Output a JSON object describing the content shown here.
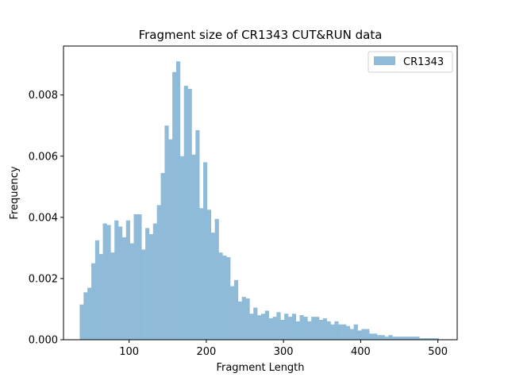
{
  "chart_data": {
    "type": "bar",
    "title": "Fragment size of CR1343 CUT&RUN data",
    "xlabel": "Fragment Length",
    "ylabel": "Frequency",
    "xlim": [
      15,
      525
    ],
    "ylim": [
      0,
      0.0096
    ],
    "xticks": [
      100,
      200,
      300,
      400,
      500
    ],
    "yticks": [
      0.0,
      0.002,
      0.004,
      0.006,
      0.008
    ],
    "ytick_labels": [
      "0.000",
      "0.002",
      "0.004",
      "0.006",
      "0.008"
    ],
    "xtick_labels": [
      "100",
      "200",
      "300",
      "400",
      "500"
    ],
    "bar_color": "#8fbbd9",
    "legend_position": "top-right",
    "bin_start": 36,
    "bin_width": 5,
    "series": [
      {
        "name": "CR1343",
        "values": [
          0.00115,
          0.00155,
          0.0017,
          0.0025,
          0.00325,
          0.0028,
          0.0038,
          0.00375,
          0.00285,
          0.0039,
          0.0037,
          0.00335,
          0.0039,
          0.00315,
          0.0041,
          0.0041,
          0.00295,
          0.00365,
          0.00345,
          0.0038,
          0.0044,
          0.00545,
          0.007,
          0.00655,
          0.00875,
          0.0091,
          0.006,
          0.0083,
          0.0082,
          0.00605,
          0.00685,
          0.0043,
          0.0058,
          0.00425,
          0.0035,
          0.00395,
          0.00285,
          0.00275,
          0.0027,
          0.00175,
          0.00195,
          0.00125,
          0.0014,
          0.00135,
          0.00085,
          0.00105,
          0.0008,
          0.00085,
          0.00095,
          0.0007,
          0.00075,
          0.0009,
          0.00065,
          0.00085,
          0.00075,
          0.00085,
          0.0006,
          0.0008,
          0.00075,
          0.0006,
          0.00075,
          0.00075,
          0.00065,
          0.0007,
          0.0006,
          0.0005,
          0.0006,
          0.0005,
          0.0005,
          0.00045,
          0.00035,
          0.0005,
          0.0003,
          0.00035,
          0.00035,
          0.0002,
          0.0002,
          0.00015,
          0.00015,
          0.0001,
          0.00015,
          0.0001,
          0.0001,
          0.0001,
          0.0001,
          0.0001,
          0.0001,
          0.0001,
          5e-05,
          5e-05,
          5e-05,
          5e-05,
          5e-05
        ]
      }
    ]
  }
}
